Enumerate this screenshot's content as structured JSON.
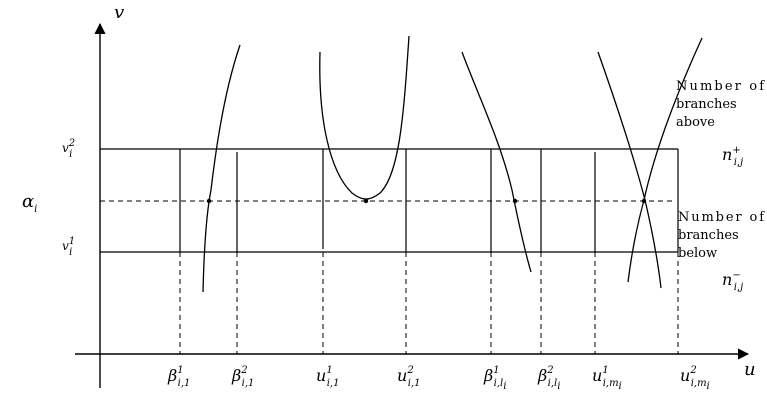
{
  "axes": {
    "x_label": "u",
    "y_label": "v"
  },
  "left_labels": {
    "alpha": {
      "base": "α",
      "sub": "i"
    },
    "v_top": {
      "base": "v",
      "sub": "i",
      "sup": "2"
    },
    "v_bottom": {
      "base": "v",
      "sub": "i",
      "sup": "1"
    }
  },
  "bottom_labels": [
    {
      "base": "β",
      "sub": "i,1",
      "sup": "1"
    },
    {
      "base": "β",
      "sub": "i,1",
      "sup": "2"
    },
    {
      "base": "u",
      "sub": "i,1",
      "sup": "1"
    },
    {
      "base": "u",
      "sub": "i,1",
      "sup": "2"
    },
    {
      "base": "β",
      "sub": "i,l",
      "sup": "1",
      "subsub": "i"
    },
    {
      "base": "β",
      "sub": "i,l",
      "sup": "2",
      "subsub": "i"
    },
    {
      "base": "u",
      "sub": "i,m",
      "sup": "1",
      "subsub": "i"
    },
    {
      "base": "u",
      "sub": "i,m",
      "sup": "2",
      "subsub": "i"
    }
  ],
  "annotations": {
    "above": [
      "Number  of",
      "branches",
      "above"
    ],
    "below": [
      "Number  of",
      "branches",
      "below"
    ],
    "n_plus": {
      "base": "n",
      "sub": "i,j",
      "sup": "+"
    },
    "n_minus": {
      "base": "n",
      "sub": "i,j",
      "sup": "−"
    }
  }
}
